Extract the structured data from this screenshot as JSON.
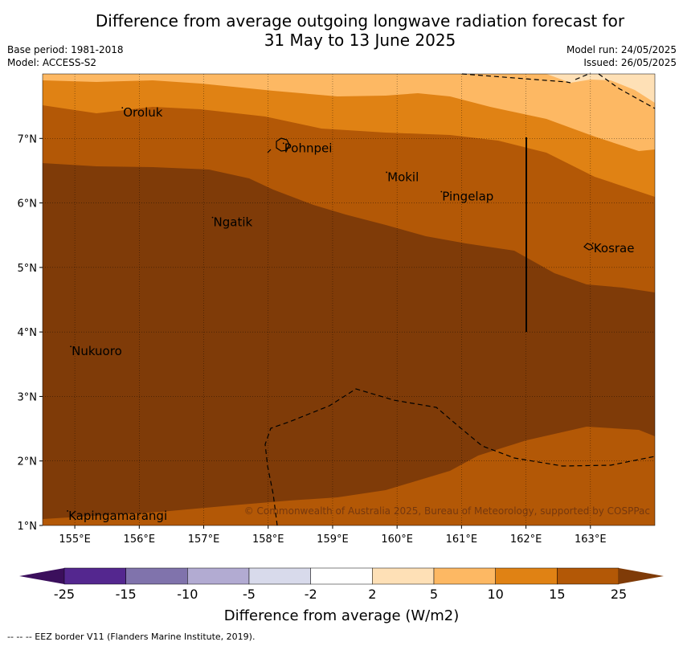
{
  "title_line1": "Difference from average outgoing longwave radiation forecast for",
  "title_line2": "31 May to 13 June 2025",
  "base_period": "Base period: 1981-2018",
  "model": "Model: ACCESS-S2",
  "model_run": "Model run: 24/05/2025",
  "issued": "Issued: 26/05/2025",
  "copyright": "© Commonwealth of Australia 2025, Bureau of Meteorology, supported by COSPPac",
  "footnote": "-- -- -- EEZ border V11 (Flanders Marine Institute, 2019).",
  "colorbar_label": "Difference from average (W/m2)",
  "colorbar_ticks": [
    "-25",
    "-15",
    "-10",
    "-5",
    "-2",
    "2",
    "5",
    "10",
    "15",
    "25"
  ],
  "colors": {
    "bin_lt_-25": "#3b0f5c",
    "bin_-25_-15": "#54278f",
    "bin_-15_-10": "#8073ac",
    "bin_-10_-5": "#b2abd2",
    "bin_-5_-2": "#d8daeb",
    "bin_-2_2": "#ffffff",
    "bin_2_5": "#fee0b6",
    "bin_5_10": "#fdb863",
    "bin_10_15": "#e08214",
    "bin_15_25": "#b35806",
    "bin_gt_25": "#7f3b08"
  },
  "map": {
    "lon_range": [
      154.5,
      164.0
    ],
    "lat_range": [
      1.0,
      8.0
    ],
    "lon_ticks": [
      "155°E",
      "156°E",
      "157°E",
      "158°E",
      "159°E",
      "160°E",
      "161°E",
      "162°E",
      "163°E"
    ],
    "lat_ticks": [
      "1°N",
      "2°N",
      "3°N",
      "4°N",
      "5°N",
      "6°N",
      "7°N"
    ],
    "places": [
      {
        "name": "Oroluk",
        "lon": 155.75,
        "lat": 7.4
      },
      {
        "name": "Pohnpei",
        "lon": 158.25,
        "lat": 6.85
      },
      {
        "name": "Mokil",
        "lon": 159.85,
        "lat": 6.4
      },
      {
        "name": "Pingelap",
        "lon": 160.7,
        "lat": 6.1
      },
      {
        "name": "Ngatik",
        "lon": 157.15,
        "lat": 5.7
      },
      {
        "name": "Kosrae",
        "lon": 163.05,
        "lat": 5.3
      },
      {
        "name": "Nukuoro",
        "lon": 154.95,
        "lat": 3.7
      },
      {
        "name": "Kapingamarangi",
        "lon": 154.9,
        "lat": 1.15
      }
    ]
  }
}
